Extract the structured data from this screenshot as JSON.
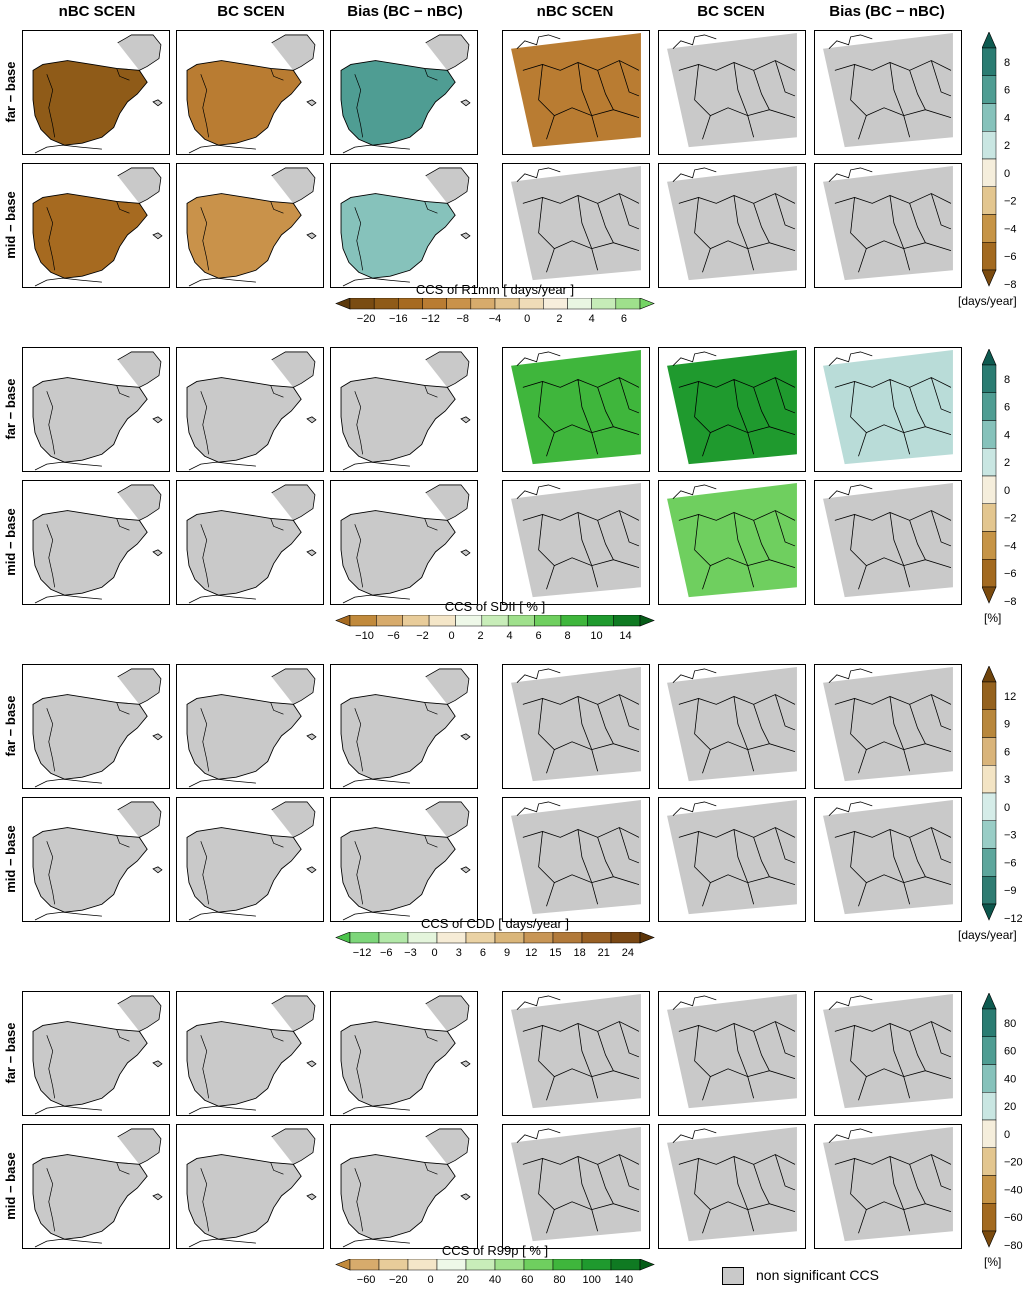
{
  "columns": [
    "nBC SCEN",
    "BC SCEN",
    "Bias (BC − nBC)",
    "nBC SCEN",
    "BC SCEN",
    "Bias (BC − nBC)"
  ],
  "rows": [
    "far − base",
    "mid − base"
  ],
  "blocks": [
    {
      "index": "R1mm",
      "colorbar_title": "CCS of R1mm  [ days/year ]",
      "colorbar_ticks": [
        "−20",
        "−16",
        "−12",
        "−8",
        "−4",
        "0",
        "2",
        "4",
        "6"
      ],
      "colorbar_colors": [
        "#5c3a0e",
        "#7a4c12",
        "#8f5b18",
        "#a66a20",
        "#b97c32",
        "#c9924a",
        "#d7ab6c",
        "#e3c490",
        "#efdcb8",
        "#f7eedc",
        "#e9f6e2",
        "#c6ecb8",
        "#9fe08c",
        "#74d464"
      ],
      "bias_ticks": [
        "8",
        "6",
        "4",
        "2",
        "0",
        "−2",
        "−4",
        "−6",
        "−8"
      ],
      "bias_colors": [
        "#0e5a50",
        "#2a7c72",
        "#4f9d93",
        "#86c2bb",
        "#c9e6e2",
        "#f5eedc",
        "#e3c68f",
        "#c69446",
        "#a36a20",
        "#7a4a0e"
      ],
      "bias_unit": "[days/year]",
      "panel_fill": [
        [
          "#8f5b18",
          "#b97c32",
          "#4f9d93",
          "#b97c32",
          "#c9c9c9",
          "#c9c9c9"
        ],
        [
          "#a66a20",
          "#c9924a",
          "#86c2bb",
          "#c9c9c9",
          "#c9c9c9",
          "#c9c9c9"
        ]
      ]
    },
    {
      "index": "SDII",
      "colorbar_title": "CCS of SDII  [ % ]",
      "colorbar_ticks": [
        "−10",
        "−6",
        "−2",
        "0",
        "2",
        "4",
        "6",
        "8",
        "10",
        "14"
      ],
      "colorbar_colors": [
        "#a66a20",
        "#c18a3c",
        "#d7ab6c",
        "#e8cc9a",
        "#f4e6c8",
        "#eef8e8",
        "#c8edb9",
        "#9fe08c",
        "#6fcf5f",
        "#3fb63c",
        "#1f9a2e",
        "#0f7a22",
        "#065c18"
      ],
      "bias_ticks": [
        "8",
        "6",
        "4",
        "2",
        "0",
        "−2",
        "−4",
        "−6",
        "−8"
      ],
      "bias_colors": [
        "#0e5a50",
        "#2a7c72",
        "#4f9d93",
        "#86c2bb",
        "#c9e6e2",
        "#f5eedc",
        "#e3c68f",
        "#c69446",
        "#a36a20",
        "#7a4a0e"
      ],
      "bias_unit": "[%]",
      "panel_fill": [
        [
          "#c9c9c9",
          "#c9c9c9",
          "#c9c9c9",
          "#3fb63c",
          "#1f9a2e",
          "#b9dcd8"
        ],
        [
          "#c9c9c9",
          "#c9c9c9",
          "#c9c9c9",
          "#c9c9c9",
          "#6fcf5f",
          "#c9c9c9"
        ]
      ]
    },
    {
      "index": "CDD",
      "colorbar_title": "CCS of CDD  [ days/year ]",
      "colorbar_ticks": [
        "−12",
        "−6",
        "−3",
        "0",
        "3",
        "6",
        "9",
        "12",
        "15",
        "18",
        "21",
        "24"
      ],
      "colorbar_colors": [
        "#4cc44c",
        "#7dd67a",
        "#b2e8a8",
        "#e4f5dc",
        "#f6ecd6",
        "#ead2a4",
        "#dab67a",
        "#c89656",
        "#b27a3a",
        "#986024",
        "#7a4814",
        "#5c3408"
      ],
      "bias_ticks": [
        "12",
        "9",
        "6",
        "3",
        "0",
        "−3",
        "−6",
        "−9",
        "−12"
      ],
      "bias_colors": [
        "#6e430c",
        "#95621e",
        "#b8873c",
        "#d9b47a",
        "#f3e4c4",
        "#d5ece8",
        "#99cdc6",
        "#5da69c",
        "#2f7c72",
        "#0d564c"
      ],
      "bias_unit": "[days/year]",
      "panel_fill": [
        [
          "#c9c9c9",
          "#c9c9c9",
          "#c9c9c9",
          "#c9c9c9",
          "#c9c9c9",
          "#c9c9c9"
        ],
        [
          "#c9c9c9",
          "#c9c9c9",
          "#c9c9c9",
          "#c9c9c9",
          "#c9c9c9",
          "#c9c9c9"
        ]
      ]
    },
    {
      "index": "R99p",
      "colorbar_title": "CCS of R99p  [ % ]",
      "colorbar_ticks": [
        "−60",
        "−20",
        "0",
        "20",
        "40",
        "60",
        "80",
        "100",
        "140"
      ],
      "colorbar_colors": [
        "#c18a3c",
        "#d7ab6c",
        "#e8cc9a",
        "#f4e6c8",
        "#eef8e8",
        "#c8edb9",
        "#9fe08c",
        "#6fcf5f",
        "#3fb63c",
        "#1f9a2e",
        "#0f7a22",
        "#065c18"
      ],
      "bias_ticks": [
        "80",
        "60",
        "40",
        "20",
        "0",
        "−20",
        "−40",
        "−60",
        "−80"
      ],
      "bias_colors": [
        "#0e5a50",
        "#2a7c72",
        "#4f9d93",
        "#86c2bb",
        "#c9e6e2",
        "#f5eedc",
        "#e3c68f",
        "#c69446",
        "#a36a20",
        "#7a4a0e"
      ],
      "bias_unit": "[%]",
      "panel_fill": [
        [
          "#c9c9c9",
          "#c9c9c9",
          "#c9c9c9",
          "#c9c9c9",
          "#c9c9c9",
          "#c9c9c9"
        ],
        [
          "#c9c9c9",
          "#c9c9c9",
          "#c9c9c9",
          "#c9c9c9",
          "#c9c9c9",
          "#c9c9c9"
        ]
      ]
    }
  ],
  "legend_label": "non significant CCS",
  "colors": {
    "non_significant": "#c9c9c9",
    "sea": "#ffffff",
    "coast": "#000000"
  }
}
